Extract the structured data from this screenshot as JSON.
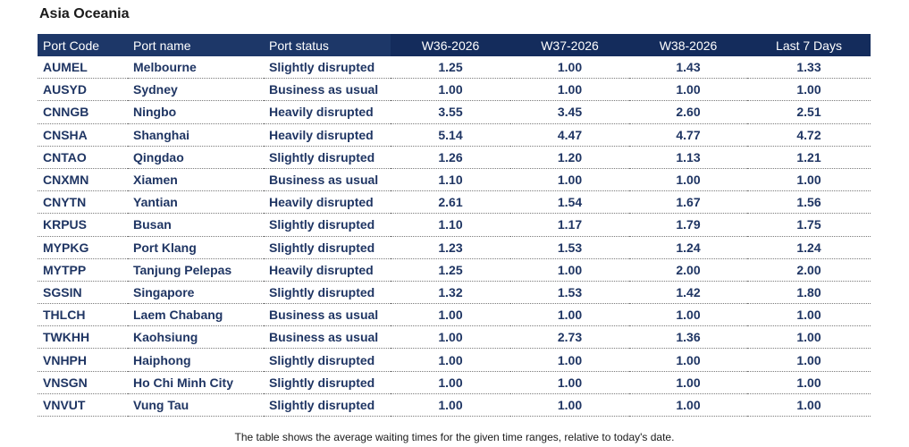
{
  "title": "Asia Oceania",
  "columns": {
    "port_code": "Port Code",
    "port_name": "Port name",
    "port_status": "Port status",
    "w36": "W36-2026",
    "w37": "W37-2026",
    "w38": "W38-2026",
    "last7": "Last 7 Days"
  },
  "rows": [
    {
      "code": "AUMEL",
      "name": "Melbourne",
      "status": "Slightly disrupted",
      "w36": "1.25",
      "w37": "1.00",
      "w38": "1.43",
      "last7": "1.33"
    },
    {
      "code": "AUSYD",
      "name": "Sydney",
      "status": "Business as usual",
      "w36": "1.00",
      "w37": "1.00",
      "w38": "1.00",
      "last7": "1.00"
    },
    {
      "code": "CNNGB",
      "name": "Ningbo",
      "status": "Heavily disrupted",
      "w36": "3.55",
      "w37": "3.45",
      "w38": "2.60",
      "last7": "2.51"
    },
    {
      "code": "CNSHA",
      "name": "Shanghai",
      "status": "Heavily disrupted",
      "w36": "5.14",
      "w37": "4.47",
      "w38": "4.77",
      "last7": "4.72"
    },
    {
      "code": "CNTAO",
      "name": "Qingdao",
      "status": "Slightly disrupted",
      "w36": "1.26",
      "w37": "1.20",
      "w38": "1.13",
      "last7": "1.21"
    },
    {
      "code": "CNXMN",
      "name": "Xiamen",
      "status": "Business as usual",
      "w36": "1.10",
      "w37": "1.00",
      "w38": "1.00",
      "last7": "1.00"
    },
    {
      "code": "CNYTN",
      "name": "Yantian",
      "status": "Heavily disrupted",
      "w36": "2.61",
      "w37": "1.54",
      "w38": "1.67",
      "last7": "1.56"
    },
    {
      "code": "KRPUS",
      "name": "Busan",
      "status": "Slightly disrupted",
      "w36": "1.10",
      "w37": "1.17",
      "w38": "1.79",
      "last7": "1.75"
    },
    {
      "code": "MYPKG",
      "name": "Port Klang",
      "status": "Slightly disrupted",
      "w36": "1.23",
      "w37": "1.53",
      "w38": "1.24",
      "last7": "1.24"
    },
    {
      "code": "MYTPP",
      "name": "Tanjung Pelepas",
      "status": "Heavily disrupted",
      "w36": "1.25",
      "w37": "1.00",
      "w38": "2.00",
      "last7": "2.00"
    },
    {
      "code": "SGSIN",
      "name": "Singapore",
      "status": "Slightly disrupted",
      "w36": "1.32",
      "w37": "1.53",
      "w38": "1.42",
      "last7": "1.80"
    },
    {
      "code": "THLCH",
      "name": "Laem Chabang",
      "status": "Business as usual",
      "w36": "1.00",
      "w37": "1.00",
      "w38": "1.00",
      "last7": "1.00"
    },
    {
      "code": "TWKHH",
      "name": "Kaohsiung",
      "status": "Business as usual",
      "w36": "1.00",
      "w37": "2.73",
      "w38": "1.36",
      "last7": "1.00"
    },
    {
      "code": "VNHPH",
      "name": "Haiphong",
      "status": "Slightly disrupted",
      "w36": "1.00",
      "w37": "1.00",
      "w38": "1.00",
      "last7": "1.00"
    },
    {
      "code": "VNSGN",
      "name": "Ho Chi Minh City",
      "status": "Slightly disrupted",
      "w36": "1.00",
      "w37": "1.00",
      "w38": "1.00",
      "last7": "1.00"
    },
    {
      "code": "VNVUT",
      "name": "Vung Tau",
      "status": "Slightly disrupted",
      "w36": "1.00",
      "w37": "1.00",
      "w38": "1.00",
      "last7": "1.00"
    }
  ],
  "footnote": "The table shows the average waiting times for the given time ranges, relative to today's date.",
  "colors": {
    "header_bg": "#1d3768",
    "header_week_bg": "#142c5c",
    "cell_text": "#1f3563"
  }
}
